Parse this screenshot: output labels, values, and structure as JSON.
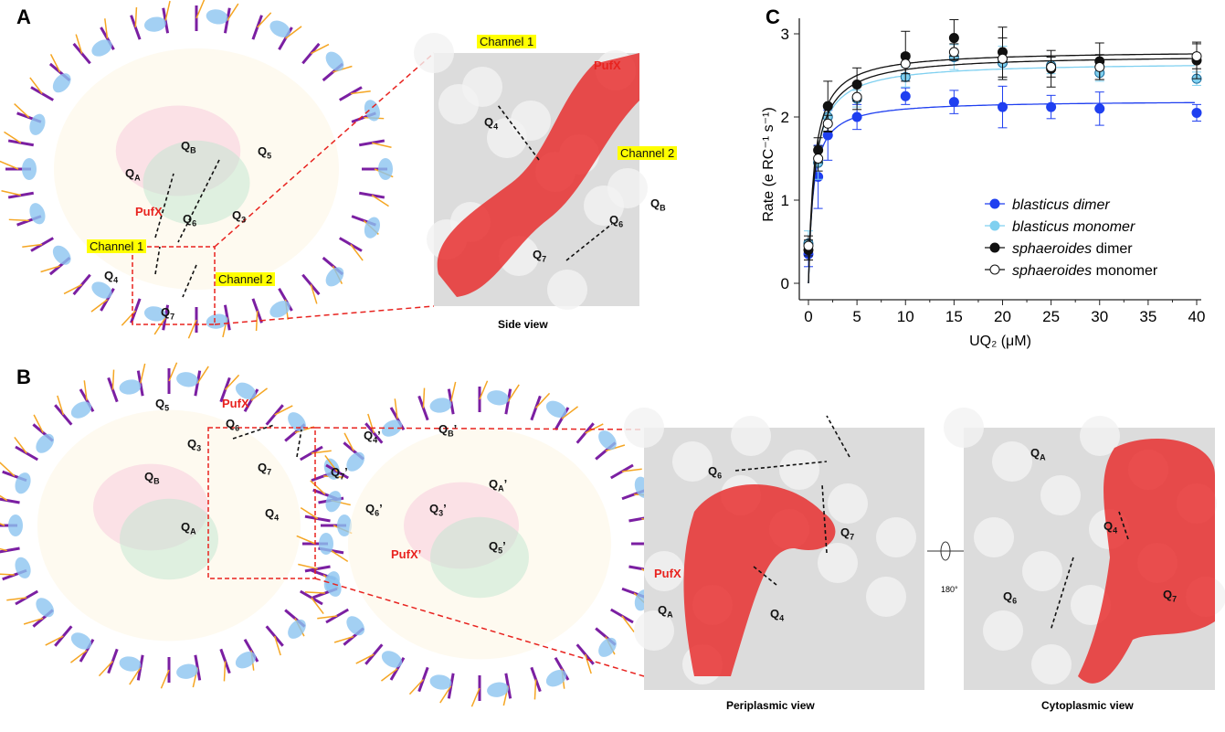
{
  "panels": {
    "A": {
      "letter": "A",
      "labels": [
        {
          "q": "B"
        },
        {
          "q": "A"
        },
        {
          "q": "5"
        },
        {
          "q": "3"
        },
        {
          "text": "PufX",
          "style": "red"
        },
        {
          "q": "6"
        },
        {
          "text": "Channel 1",
          "style": "yel"
        },
        {
          "text": "Channel 2",
          "style": "yel"
        },
        {
          "q": "4"
        },
        {
          "q": "7"
        }
      ]
    },
    "side_view": {
      "caption": "Side view",
      "labels": [
        {
          "text": "PufX",
          "style": "red"
        },
        {
          "text": "Channel 1",
          "style": "yel"
        },
        {
          "q": "4"
        },
        {
          "text": "Channel 2",
          "style": "yel"
        },
        {
          "q": "B"
        },
        {
          "q": "6"
        },
        {
          "q": "7"
        }
      ]
    },
    "B": {
      "letter": "B",
      "labels": [
        {
          "q": "5"
        },
        {
          "text": "PufX",
          "style": "red"
        },
        {
          "q": "6"
        },
        {
          "q": "3"
        },
        {
          "q": "B"
        },
        {
          "q": "7"
        },
        {
          "q": "A"
        },
        {
          "q": "4"
        },
        {
          "q": "4",
          "prime": "’"
        },
        {
          "q": "B",
          "prime": "’"
        },
        {
          "q": "7",
          "prime": "’"
        },
        {
          "q": "6",
          "prime": "’"
        },
        {
          "q": "3",
          "prime": "’"
        },
        {
          "q": "A",
          "prime": "’"
        },
        {
          "q": "5",
          "prime": "’"
        },
        {
          "text": "PufX’",
          "style": "red"
        }
      ]
    },
    "periplasmic_view": {
      "caption": "Periplasmic view",
      "labels": [
        {
          "q": "6"
        },
        {
          "q": "7"
        },
        {
          "text": "PufX",
          "style": "red"
        },
        {
          "q": "A"
        },
        {
          "q": "4"
        }
      ]
    },
    "rotation": {
      "label": "180°"
    },
    "cytoplasmic_view": {
      "caption": "Cytoplasmic view",
      "labels": [
        {
          "q": "A"
        },
        {
          "q": "4"
        },
        {
          "q": "6"
        },
        {
          "q": "7"
        }
      ]
    },
    "C": {
      "letter": "C"
    }
  },
  "colors": {
    "pufx": "#e8231f",
    "channel": "#ffff00",
    "blasticus_dimer": "#1f3ff0",
    "blasticus_monomer": "#7fd0f0",
    "sphaeroides": "#111111",
    "bchl": "#7b1fa2",
    "carotenoid": "#f5a623",
    "helix": "#8cc4f0"
  },
  "chart_data": {
    "type": "scatter",
    "xlabel": "UQ₂ (μM)",
    "ylabel": "Rate (e RC⁻¹ s⁻¹)",
    "xlim": [
      0,
      40
    ],
    "ylim": [
      0,
      3
    ],
    "xticks": [
      0,
      5,
      10,
      15,
      20,
      25,
      30,
      35,
      40
    ],
    "yticks": [
      0,
      1,
      2,
      3
    ],
    "grid": false,
    "legend_position": "bottom-right",
    "x": [
      0,
      1,
      2,
      5,
      10,
      15,
      20,
      25,
      30,
      40
    ],
    "series": [
      {
        "name_italic": "blasticus dimer",
        "name_rest": "",
        "marker": "filled",
        "color": "#1f3ff0",
        "values": [
          0.35,
          1.28,
          1.78,
          2.0,
          2.25,
          2.18,
          2.12,
          2.12,
          2.1,
          2.05
        ],
        "errors": [
          0.15,
          0.38,
          0.3,
          0.15,
          0.1,
          0.14,
          0.25,
          0.14,
          0.2,
          0.1
        ],
        "fit": {
          "vmax": 2.2,
          "km": 0.5
        }
      },
      {
        "name_italic": "blasticus monomer",
        "name_rest": "",
        "marker": "filled",
        "color": "#7fd0f0",
        "values": [
          0.48,
          1.45,
          2.0,
          2.22,
          2.48,
          2.72,
          2.65,
          2.62,
          2.53,
          2.46
        ],
        "errors": [
          0.15,
          0.2,
          0.1,
          0.1,
          0.12,
          0.15,
          0.2,
          0.1,
          0.1,
          0.08
        ],
        "fit": {
          "vmax": 2.66,
          "km": 0.65
        }
      },
      {
        "name_italic": "sphaeroides",
        "name_rest": " dimer",
        "marker": "filled",
        "color": "#111111",
        "values": [
          0.4,
          1.6,
          2.13,
          2.39,
          2.73,
          2.95,
          2.78,
          2.58,
          2.67,
          2.68
        ],
        "errors": [
          0.12,
          0.15,
          0.3,
          0.2,
          0.3,
          0.22,
          0.3,
          0.22,
          0.22,
          0.22
        ],
        "fit": {
          "vmax": 2.8,
          "km": 0.6
        }
      },
      {
        "name_italic": "sphaeroides",
        "name_rest": " monomer",
        "marker": "open",
        "color": "#111111",
        "values": [
          0.45,
          1.5,
          1.92,
          2.24,
          2.64,
          2.78,
          2.7,
          2.6,
          2.6,
          2.73
        ],
        "errors": [
          0.12,
          0.15,
          0.1,
          0.15,
          0.12,
          0.1,
          0.25,
          0.12,
          0.15,
          0.15
        ],
        "fit": {
          "vmax": 2.75,
          "km": 0.7
        }
      }
    ]
  }
}
